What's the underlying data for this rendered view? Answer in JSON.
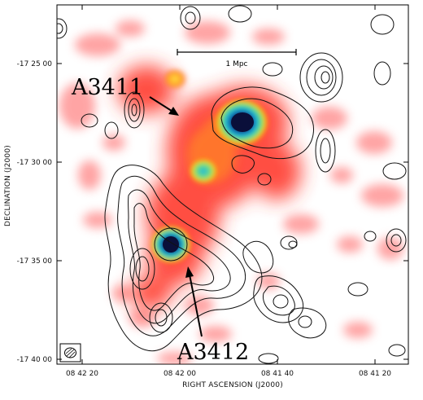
{
  "labels": {
    "cluster_north": "A3411",
    "cluster_south": "A3412",
    "scale_bar": "1 Mpc"
  },
  "axes": {
    "ylabel": "DECLINATION  (J2000)",
    "xlabel": "RIGHT ASCENSION  (J2000)",
    "y_ticks": [
      "-17 25 00",
      "-17 30 00",
      "-17 35 00",
      "-17 40 00"
    ],
    "x_ticks": [
      "08 42 20",
      "08 42 00",
      "08 41 40",
      "08 41 20"
    ]
  },
  "colors": {
    "xray_low": "#ff4a4a",
    "xray_mid": "#ffd000",
    "xray_high": "#1fb8e8",
    "xray_peak": "#0a0f3a",
    "contours": "#111111"
  }
}
